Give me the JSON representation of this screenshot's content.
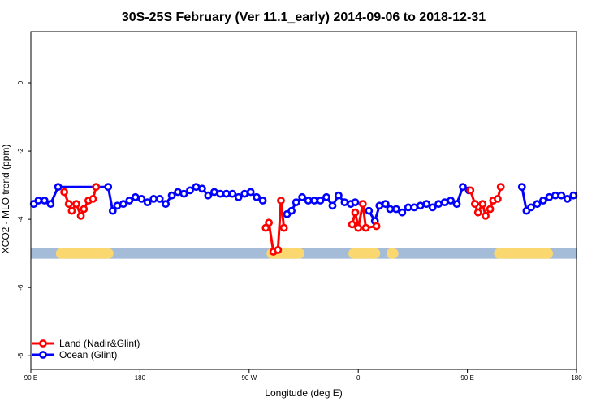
{
  "chart_data": {
    "type": "line",
    "title": "30S-25S February (Ver 11.1_early)   2014-09-06 to 2018-12-31",
    "xlabel": "Longitude (deg E)",
    "ylabel": "XCO2 - MLO trend (ppm)",
    "xlim": [
      90,
      450
    ],
    "ylim": [
      -8.4,
      1.5
    ],
    "x_ticks": [
      {
        "value": 90,
        "label": "90 E"
      },
      {
        "value": 162,
        "label": "180"
      },
      {
        "value": 234,
        "label": "90 W"
      },
      {
        "value": 306,
        "label": "0"
      },
      {
        "value": 378,
        "label": "90 E"
      },
      {
        "value": 450,
        "label": "180"
      }
    ],
    "y_ticks": [
      {
        "value": 0,
        "label": "0"
      },
      {
        "value": -2,
        "label": "-2"
      },
      {
        "value": -4,
        "label": "-4"
      },
      {
        "value": -6,
        "label": "-6"
      },
      {
        "value": -8,
        "label": "-8"
      }
    ],
    "grid": false,
    "legend_position": "bottom-left",
    "land_sea_bar": {
      "y": -5.0,
      "ocean_color": "#a4bcd8",
      "land_color": "#fbd86f",
      "land_ranges": [
        [
          110,
          141
        ],
        [
          249,
          267
        ],
        [
          303,
          317
        ],
        [
          328,
          329
        ],
        [
          399,
          431
        ]
      ]
    },
    "series": [
      {
        "name": "Land (Nadir&Glint)",
        "color": "#ff0000",
        "segments": [
          {
            "x": [
              112,
              115,
              117,
              120,
              123,
              125,
              128,
              131,
              133
            ],
            "y": [
              -3.2,
              -3.55,
              -3.75,
              -3.55,
              -3.9,
              -3.7,
              -3.45,
              -3.4,
              -3.05
            ]
          },
          {
            "x": [
              245,
              247,
              250,
              253,
              255,
              257
            ],
            "y": [
              -4.25,
              -4.1,
              -4.95,
              -4.9,
              -3.45,
              -4.25
            ]
          },
          {
            "x": [
              302,
              304,
              306,
              309,
              311,
              318
            ],
            "y": [
              -4.15,
              -3.8,
              -4.25,
              -3.55,
              -4.25,
              -4.2
            ]
          },
          {
            "x": [
              380,
              383,
              385,
              388,
              390,
              393,
              395,
              398,
              400
            ],
            "y": [
              -3.15,
              -3.55,
              -3.8,
              -3.55,
              -3.9,
              -3.7,
              -3.45,
              -3.4,
              -3.05
            ]
          }
        ]
      },
      {
        "name": "Ocean (Glint)",
        "color": "#0000ff",
        "segments": [
          {
            "x": [
              92,
              95,
              99,
              103,
              108,
              141,
              144,
              147,
              151,
              155,
              159,
              163,
              167,
              171,
              175,
              179,
              183,
              187,
              191,
              195,
              199,
              203,
              207,
              211,
              215,
              219,
              223,
              227,
              231,
              235,
              239,
              243
            ],
            "y": [
              -3.55,
              -3.45,
              -3.45,
              -3.55,
              -3.05,
              -3.05,
              -3.75,
              -3.6,
              -3.55,
              -3.45,
              -3.35,
              -3.4,
              -3.5,
              -3.4,
              -3.4,
              -3.55,
              -3.3,
              -3.2,
              -3.25,
              -3.15,
              -3.05,
              -3.1,
              -3.3,
              -3.2,
              -3.25,
              -3.25,
              -3.25,
              -3.35,
              -3.25,
              -3.2,
              -3.35,
              -3.45
            ]
          },
          {
            "x": [
              259,
              262,
              265,
              269,
              273,
              277,
              281,
              285,
              289,
              293,
              297,
              301,
              304
            ],
            "y": [
              -3.85,
              -3.75,
              -3.5,
              -3.35,
              -3.45,
              -3.45,
              -3.45,
              -3.35,
              -3.6,
              -3.3,
              -3.5,
              -3.55,
              -3.5
            ]
          },
          {
            "x": [
              313,
              317,
              320,
              324,
              327,
              331,
              335,
              339,
              343,
              347,
              351,
              355,
              359,
              363,
              367,
              371,
              375,
              379
            ],
            "y": [
              -3.75,
              -4.05,
              -3.6,
              -3.55,
              -3.7,
              -3.7,
              -3.8,
              -3.65,
              -3.65,
              -3.6,
              -3.55,
              -3.65,
              -3.55,
              -3.5,
              -3.45,
              -3.55,
              -3.05,
              -3.15
            ]
          },
          {
            "x": [
              414,
              417,
              420,
              424,
              428,
              432,
              436,
              440,
              444,
              448
            ],
            "y": [
              -3.05,
              -3.75,
              -3.65,
              -3.55,
              -3.45,
              -3.35,
              -3.3,
              -3.3,
              -3.4,
              -3.3
            ]
          }
        ]
      }
    ]
  }
}
